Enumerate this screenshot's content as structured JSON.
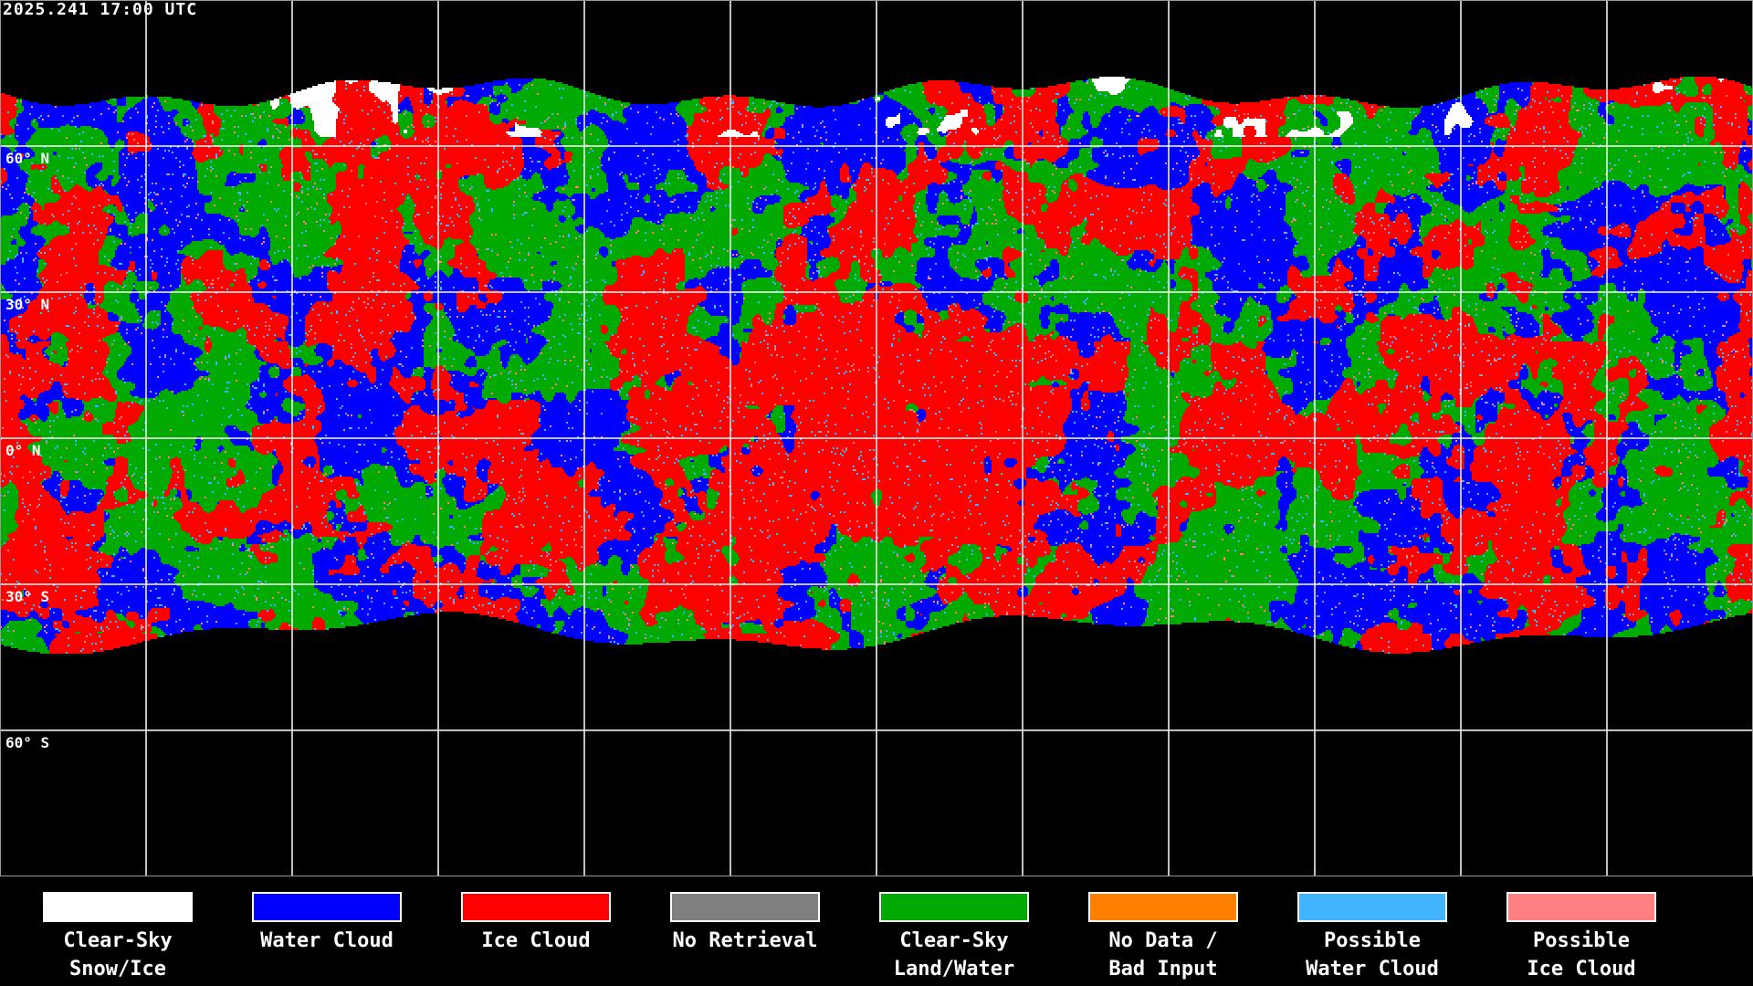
{
  "map": {
    "timestamp": "2025.241 17:00 UTC",
    "projection": "equirectangular",
    "grid_spacing_degrees": 30,
    "latitude_labels": [
      "60° N",
      "30° N",
      "0° N",
      "30° S",
      "60° S"
    ],
    "background_color": "#000000",
    "coastline_color": "#ffffff",
    "gridline_color": "#ffffff"
  },
  "legend": [
    {
      "label": "Clear-Sky\nSnow/Ice",
      "color": "#ffffff"
    },
    {
      "label": "Water Cloud",
      "color": "#0000ff"
    },
    {
      "label": "Ice Cloud",
      "color": "#ff0000"
    },
    {
      "label": "No Retrieval",
      "color": "#808080"
    },
    {
      "label": "Clear-Sky\nLand/Water",
      "color": "#00aa00"
    },
    {
      "label": "No Data /\nBad Input",
      "color": "#ff8000"
    },
    {
      "label": "Possible\nWater Cloud",
      "color": "#40b4ff"
    },
    {
      "label": "Possible\nIce Cloud",
      "color": "#ff8080"
    }
  ]
}
